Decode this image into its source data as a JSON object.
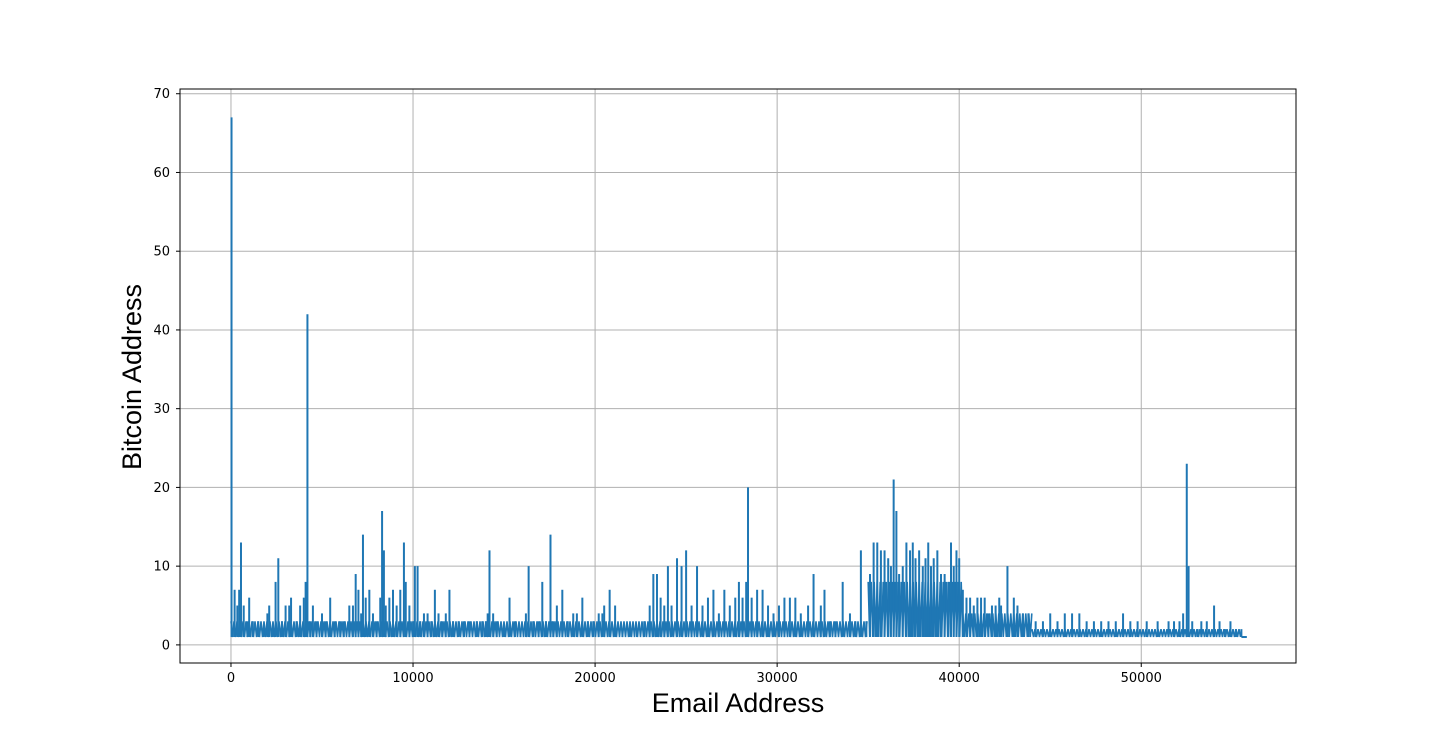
{
  "chart_data": {
    "type": "line",
    "title": "",
    "xlabel": "Email Address",
    "ylabel": "Bitcoin Address",
    "xlim": [
      -2800,
      58500
    ],
    "ylim": [
      -2.3,
      70.6
    ],
    "xticks": [
      0,
      10000,
      20000,
      30000,
      40000,
      50000
    ],
    "yticks": [
      0,
      10,
      20,
      30,
      40,
      50,
      60,
      70
    ],
    "grid": true,
    "legend": "none",
    "series_color": "#1f77b4",
    "series": [
      {
        "baseline": 1,
        "x_end": 55800,
        "spikes": [
          [
            30,
            67
          ],
          [
            100,
            2
          ],
          [
            200,
            7
          ],
          [
            350,
            5
          ],
          [
            450,
            7
          ],
          [
            550,
            13
          ],
          [
            700,
            5
          ],
          [
            900,
            3
          ],
          [
            1000,
            6
          ],
          [
            1200,
            3
          ],
          [
            1500,
            3
          ],
          [
            1800,
            2
          ],
          [
            2000,
            4
          ],
          [
            2100,
            5
          ],
          [
            2300,
            2
          ],
          [
            2450,
            8
          ],
          [
            2600,
            11
          ],
          [
            2800,
            3
          ],
          [
            3000,
            5
          ],
          [
            3200,
            5
          ],
          [
            3300,
            6
          ],
          [
            3600,
            3
          ],
          [
            3800,
            5
          ],
          [
            4000,
            6
          ],
          [
            4100,
            8
          ],
          [
            4200,
            42
          ],
          [
            4350,
            3
          ],
          [
            4500,
            5
          ],
          [
            4700,
            3
          ],
          [
            5000,
            4
          ],
          [
            5200,
            3
          ],
          [
            5450,
            6
          ],
          [
            5700,
            3
          ],
          [
            6000,
            3
          ],
          [
            6200,
            3
          ],
          [
            6500,
            5
          ],
          [
            6700,
            5
          ],
          [
            6850,
            9
          ],
          [
            7000,
            7
          ],
          [
            7150,
            4
          ],
          [
            7250,
            14
          ],
          [
            7400,
            6
          ],
          [
            7600,
            7
          ],
          [
            7800,
            4
          ],
          [
            8000,
            3
          ],
          [
            8200,
            6
          ],
          [
            8300,
            17
          ],
          [
            8400,
            12
          ],
          [
            8500,
            5
          ],
          [
            8700,
            6
          ],
          [
            8900,
            7
          ],
          [
            9100,
            5
          ],
          [
            9300,
            7
          ],
          [
            9500,
            13
          ],
          [
            9600,
            8
          ],
          [
            9800,
            5
          ],
          [
            10000,
            3
          ],
          [
            10100,
            10
          ],
          [
            10250,
            10
          ],
          [
            10400,
            3
          ],
          [
            10600,
            4
          ],
          [
            10800,
            4
          ],
          [
            11000,
            3
          ],
          [
            11200,
            7
          ],
          [
            11400,
            4
          ],
          [
            11600,
            3
          ],
          [
            11800,
            4
          ],
          [
            12000,
            7
          ],
          [
            12200,
            3
          ],
          [
            12500,
            3
          ],
          [
            12800,
            3
          ],
          [
            13100,
            3
          ],
          [
            13500,
            3
          ],
          [
            13800,
            3
          ],
          [
            14000,
            3
          ],
          [
            14100,
            4
          ],
          [
            14200,
            12
          ],
          [
            14400,
            4
          ],
          [
            14600,
            3
          ],
          [
            15000,
            2
          ],
          [
            15300,
            6
          ],
          [
            15600,
            3
          ],
          [
            15900,
            2
          ],
          [
            16200,
            4
          ],
          [
            16350,
            10
          ],
          [
            16600,
            3
          ],
          [
            16900,
            3
          ],
          [
            17100,
            8
          ],
          [
            17300,
            3
          ],
          [
            17550,
            14
          ],
          [
            17700,
            3
          ],
          [
            17900,
            5
          ],
          [
            18200,
            7
          ],
          [
            18500,
            3
          ],
          [
            18800,
            4
          ],
          [
            19000,
            4
          ],
          [
            19300,
            6
          ],
          [
            19600,
            3
          ],
          [
            19900,
            3
          ],
          [
            20200,
            4
          ],
          [
            20400,
            4
          ],
          [
            20500,
            5
          ],
          [
            20800,
            7
          ],
          [
            21100,
            5
          ],
          [
            21500,
            2
          ],
          [
            21900,
            2
          ],
          [
            22300,
            2
          ],
          [
            22700,
            3
          ],
          [
            23000,
            5
          ],
          [
            23200,
            9
          ],
          [
            23400,
            9
          ],
          [
            23600,
            6
          ],
          [
            23800,
            5
          ],
          [
            24000,
            10
          ],
          [
            24200,
            5
          ],
          [
            24500,
            11
          ],
          [
            24750,
            10
          ],
          [
            25000,
            12
          ],
          [
            25300,
            5
          ],
          [
            25600,
            10
          ],
          [
            25900,
            5
          ],
          [
            26200,
            6
          ],
          [
            26500,
            7
          ],
          [
            26800,
            4
          ],
          [
            27100,
            7
          ],
          [
            27400,
            5
          ],
          [
            27700,
            6
          ],
          [
            27900,
            8
          ],
          [
            28100,
            6
          ],
          [
            28300,
            8
          ],
          [
            28400,
            20
          ],
          [
            28600,
            6
          ],
          [
            28900,
            7
          ],
          [
            29200,
            7
          ],
          [
            29500,
            5
          ],
          [
            29800,
            4
          ],
          [
            30100,
            5
          ],
          [
            30400,
            6
          ],
          [
            30700,
            6
          ],
          [
            31000,
            6
          ],
          [
            31300,
            4
          ],
          [
            31700,
            5
          ],
          [
            32000,
            9
          ],
          [
            32400,
            5
          ],
          [
            32600,
            7
          ],
          [
            32900,
            3
          ],
          [
            33200,
            3
          ],
          [
            33600,
            8
          ],
          [
            34000,
            4
          ],
          [
            34300,
            3
          ],
          [
            34600,
            12
          ],
          [
            34900,
            3
          ],
          [
            35100,
            9
          ],
          [
            35300,
            13
          ],
          [
            35500,
            13
          ],
          [
            35700,
            12
          ],
          [
            35900,
            12
          ],
          [
            36100,
            11
          ],
          [
            36250,
            10
          ],
          [
            36400,
            21
          ],
          [
            36550,
            17
          ],
          [
            36700,
            9
          ],
          [
            36900,
            10
          ],
          [
            37100,
            13
          ],
          [
            37300,
            12
          ],
          [
            37450,
            13
          ],
          [
            37600,
            11
          ],
          [
            37800,
            12
          ],
          [
            38000,
            10
          ],
          [
            38150,
            11
          ],
          [
            38300,
            13
          ],
          [
            38450,
            10
          ],
          [
            38600,
            11
          ],
          [
            38800,
            12
          ],
          [
            39000,
            9
          ],
          [
            39200,
            9
          ],
          [
            39400,
            8
          ],
          [
            39550,
            13
          ],
          [
            39700,
            10
          ],
          [
            39850,
            12
          ],
          [
            40000,
            11
          ],
          [
            40200,
            7
          ],
          [
            40400,
            6
          ],
          [
            40600,
            6
          ],
          [
            40800,
            5
          ],
          [
            41000,
            6
          ],
          [
            41200,
            6
          ],
          [
            41400,
            6
          ],
          [
            41600,
            4
          ],
          [
            41800,
            5
          ],
          [
            42000,
            5
          ],
          [
            42200,
            6
          ],
          [
            42300,
            5
          ],
          [
            42650,
            10
          ],
          [
            43000,
            6
          ],
          [
            43200,
            5
          ],
          [
            43500,
            4
          ],
          [
            43800,
            4
          ],
          [
            44200,
            3
          ],
          [
            44600,
            3
          ],
          [
            45000,
            4
          ],
          [
            45400,
            3
          ],
          [
            45800,
            4
          ],
          [
            46200,
            4
          ],
          [
            46600,
            4
          ],
          [
            47000,
            3
          ],
          [
            47400,
            3
          ],
          [
            47800,
            3
          ],
          [
            48200,
            3
          ],
          [
            48600,
            3
          ],
          [
            49000,
            4
          ],
          [
            49400,
            3
          ],
          [
            49800,
            3
          ],
          [
            50300,
            3
          ],
          [
            50900,
            3
          ],
          [
            51500,
            3
          ],
          [
            51800,
            3
          ],
          [
            52100,
            3
          ],
          [
            52300,
            4
          ],
          [
            52500,
            23
          ],
          [
            52600,
            10
          ],
          [
            52800,
            3
          ],
          [
            53100,
            2
          ],
          [
            53300,
            3
          ],
          [
            53600,
            3
          ],
          [
            54000,
            5
          ],
          [
            54300,
            3
          ],
          [
            54600,
            2
          ],
          [
            54900,
            3
          ],
          [
            55200,
            2
          ],
          [
            55500,
            2
          ]
        ],
        "dense_regions": [
          {
            "x": [
              0,
              35000
            ],
            "low": 1,
            "high": 3
          },
          {
            "x": [
              35000,
              40200
            ],
            "low": 1,
            "high": 8
          },
          {
            "x": [
              40200,
              44000
            ],
            "low": 1,
            "high": 4
          },
          {
            "x": [
              44000,
              55500
            ],
            "low": 1,
            "high": 2
          }
        ]
      }
    ]
  }
}
